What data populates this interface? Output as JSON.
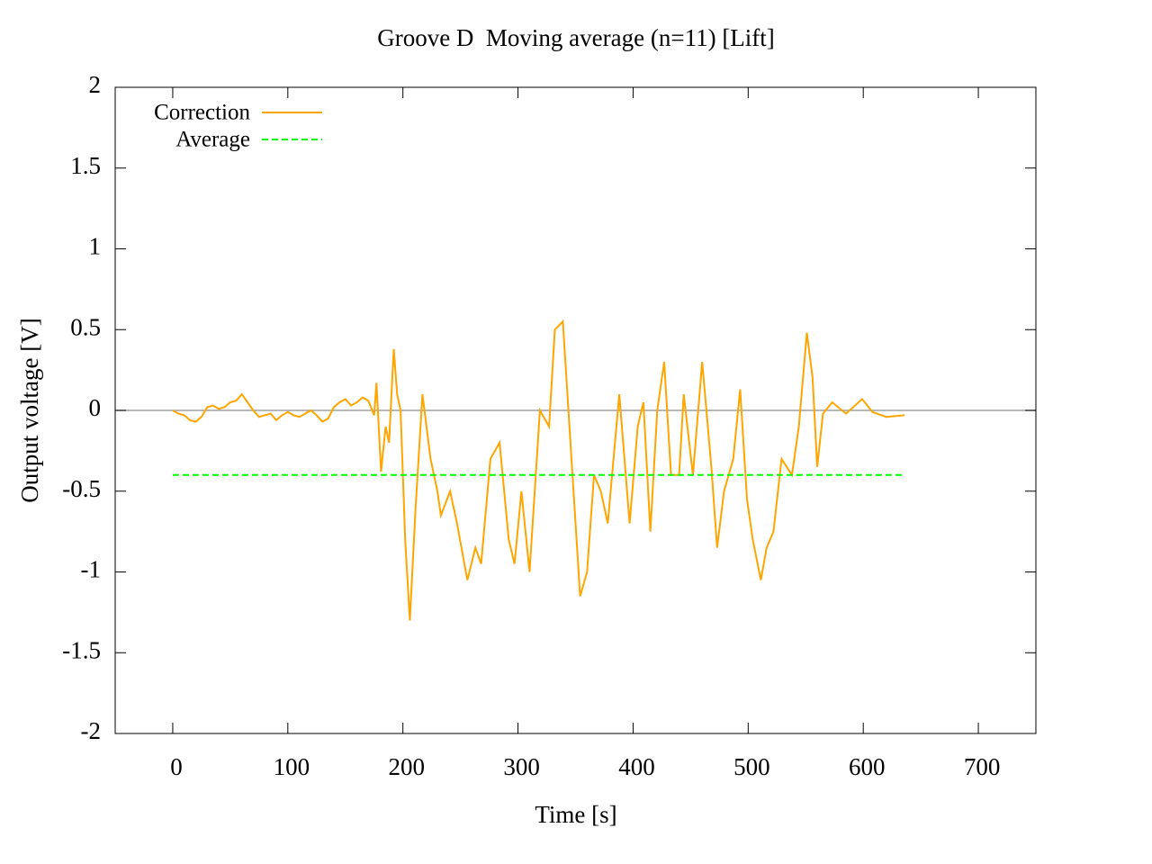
{
  "chart_data": {
    "type": "line",
    "title": "Groove D  Moving average (n=11) [Lift]",
    "xlabel": "Time [s]",
    "ylabel": "Output voltage [V]",
    "xlim": [
      -50,
      750
    ],
    "xticks": [
      0,
      100,
      200,
      300,
      400,
      500,
      600,
      700
    ],
    "ylim": [
      -2,
      2
    ],
    "yticks": [
      -2,
      -1.5,
      -1,
      -0.5,
      0,
      0.5,
      1,
      1.5,
      2
    ],
    "zeroaxis": true,
    "legend": "top-left",
    "series": [
      {
        "name": "Correction",
        "color": "#ffa500",
        "line_style": "solid",
        "x": [
          0,
          5,
          10,
          15,
          20,
          25,
          30,
          35,
          40,
          45,
          50,
          55,
          60,
          65,
          70,
          75,
          80,
          85,
          90,
          95,
          100,
          105,
          110,
          115,
          120,
          125,
          130,
          135,
          140,
          145,
          150,
          155,
          160,
          165,
          170,
          175,
          177,
          181,
          185,
          188,
          192,
          195,
          198,
          202,
          206,
          211,
          217,
          224,
          230,
          233,
          241,
          247,
          256,
          263,
          268,
          276,
          284,
          292,
          297,
          303,
          310,
          319,
          327,
          332,
          339,
          343,
          350,
          354,
          360,
          366,
          372,
          378,
          388,
          397,
          404,
          409,
          415,
          421,
          427,
          433,
          440,
          444,
          452,
          460,
          468,
          473,
          479,
          487,
          493,
          499,
          504,
          511,
          516,
          522,
          529,
          538,
          544,
          551,
          556,
          560,
          565,
          573,
          585,
          599,
          608,
          620,
          636
        ],
        "values": [
          0,
          -0.02,
          -0.03,
          -0.06,
          -0.07,
          -0.04,
          0.02,
          0.03,
          0.01,
          0.02,
          0.05,
          0.06,
          0.1,
          0.05,
          0,
          -0.04,
          -0.03,
          -0.02,
          -0.06,
          -0.03,
          -0.01,
          -0.03,
          -0.04,
          -0.02,
          0,
          -0.03,
          -0.07,
          -0.05,
          0.02,
          0.05,
          0.07,
          0.03,
          0.05,
          0.08,
          0.06,
          -0.03,
          0.17,
          -0.38,
          -0.1,
          -0.2,
          0.38,
          0.1,
          0,
          -0.8,
          -1.3,
          -0.6,
          0.1,
          -0.3,
          -0.5,
          -0.65,
          -0.5,
          -0.7,
          -1.05,
          -0.85,
          -0.95,
          -0.3,
          -0.2,
          -0.8,
          -0.95,
          -0.5,
          -1,
          0,
          -0.1,
          0.5,
          0.55,
          0.1,
          -0.7,
          -1.15,
          -1,
          -0.4,
          -0.5,
          -0.7,
          0.1,
          -0.7,
          -0.1,
          0.05,
          -0.75,
          0,
          0.3,
          -0.4,
          -0.4,
          0.1,
          -0.4,
          0.3,
          -0.35,
          -0.85,
          -0.5,
          -0.3,
          0.13,
          -0.55,
          -0.8,
          -1.05,
          -0.85,
          -0.75,
          -0.3,
          -0.4,
          -0.1,
          0.48,
          0.2,
          -0.35,
          -0.02,
          0.05,
          -0.02,
          0.07,
          -0.01,
          -0.04,
          -0.03
        ]
      },
      {
        "name": "Average",
        "color": "#00ff00",
        "line_style": "dashed",
        "x": [
          0,
          635
        ],
        "values": [
          -0.4,
          -0.4
        ]
      }
    ]
  }
}
